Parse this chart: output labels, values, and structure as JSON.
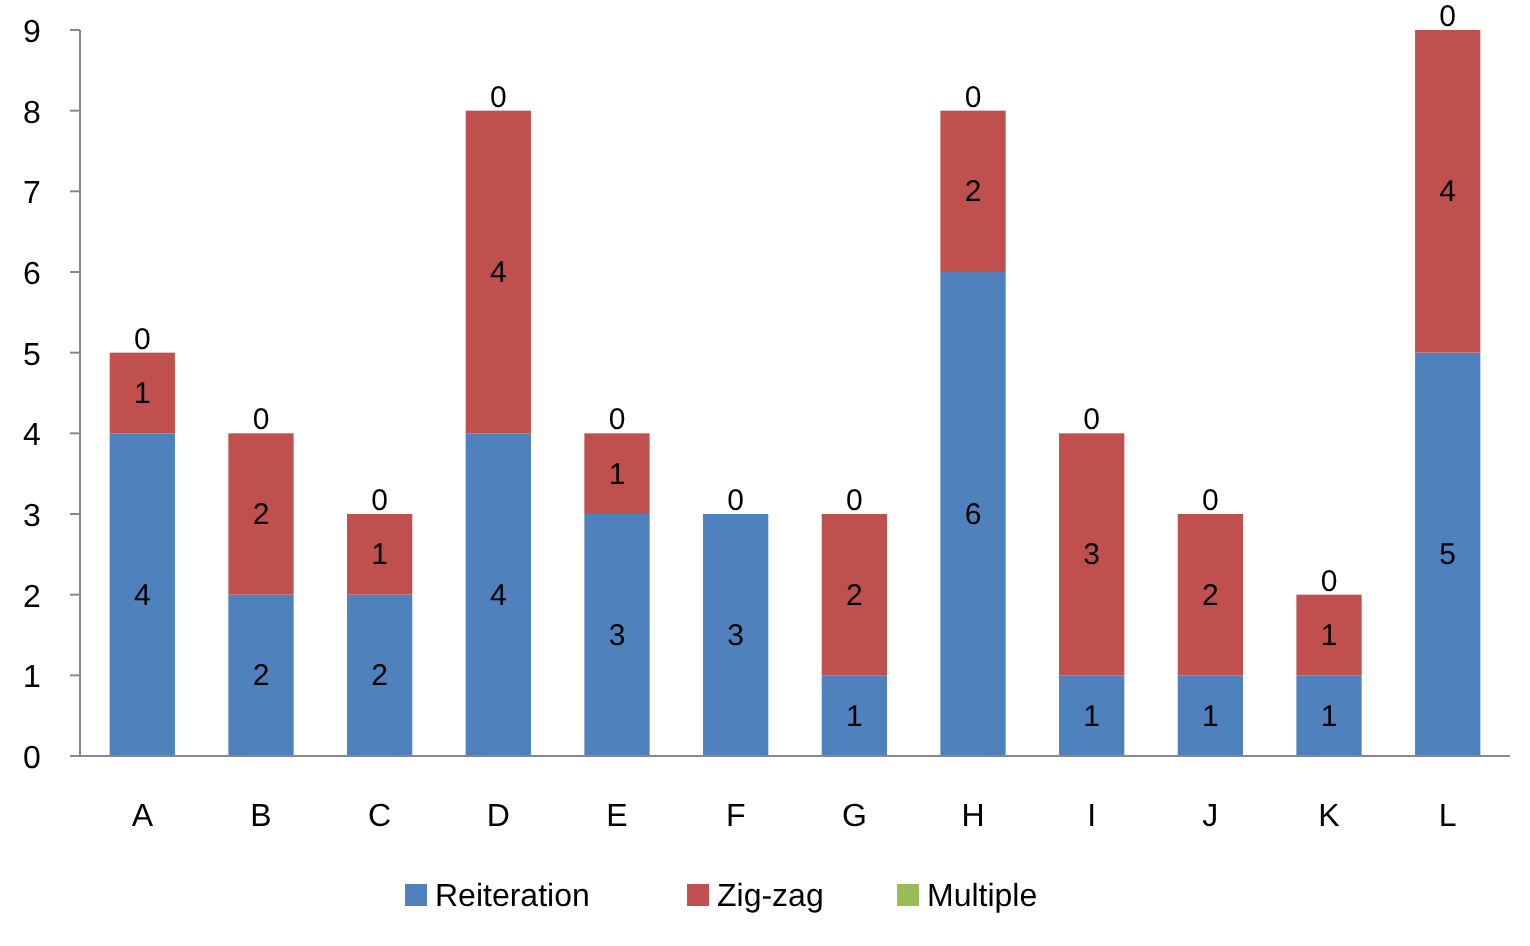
{
  "chart_data": {
    "type": "bar",
    "stacked": true,
    "categories": [
      "A",
      "B",
      "C",
      "D",
      "E",
      "F",
      "G",
      "H",
      "I",
      "J",
      "K",
      "L"
    ],
    "series": [
      {
        "name": "Reiteration",
        "color": "#4f81bd",
        "values": [
          4,
          2,
          2,
          4,
          3,
          3,
          1,
          6,
          1,
          1,
          1,
          5
        ],
        "value_labels": [
          "4",
          "2",
          "2",
          "4",
          "3",
          "3",
          "1",
          "6",
          "1",
          "1",
          "1",
          "5"
        ]
      },
      {
        "name": "Zig-zag",
        "color": "#c0504d",
        "values": [
          1,
          2,
          1,
          4,
          1,
          0,
          2,
          2,
          3,
          2,
          1,
          4
        ],
        "value_labels": [
          "1",
          "2",
          "1",
          "4",
          "1",
          null,
          "2",
          "2",
          "3",
          "2",
          "1",
          "4"
        ]
      },
      {
        "name": "Multiple",
        "color": "#9bbb59",
        "values": [
          0,
          0,
          0,
          0,
          0,
          0,
          0,
          0,
          0,
          0,
          0,
          0
        ],
        "value_labels": [
          "0",
          "0",
          "0",
          "0",
          "0",
          "0",
          "0",
          "0",
          "0",
          "0",
          "0",
          "0"
        ]
      }
    ],
    "ylim": [
      0,
      9
    ],
    "yticks": [
      0,
      1,
      2,
      3,
      4,
      5,
      6,
      7,
      8,
      9
    ],
    "grid": false,
    "legend": "bottom"
  }
}
